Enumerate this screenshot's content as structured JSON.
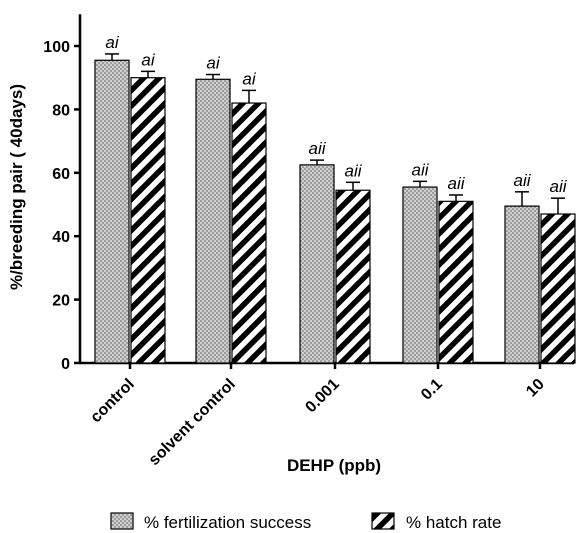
{
  "chart_data": {
    "type": "bar",
    "title": "",
    "xlabel": "DEHP (ppb)",
    "ylabel": "%/breeding pair ( 40days)",
    "ylim": [
      0,
      110
    ],
    "yticks": [
      0,
      20,
      40,
      60,
      80,
      100
    ],
    "categories": [
      "control",
      "solvent control",
      "0.001",
      "0.1",
      "10"
    ],
    "series": [
      {
        "name": "% fertilization success",
        "values": [
          95.5,
          89.5,
          62.5,
          55.5,
          49.5
        ],
        "errors": [
          2.0,
          1.5,
          1.5,
          1.8,
          4.5
        ],
        "labels": [
          "ai",
          "ai",
          "aii",
          "aii",
          "aii"
        ],
        "pattern": "dots",
        "fill": "#c8c8c8"
      },
      {
        "name": "% hatch rate",
        "values": [
          90.0,
          82.0,
          54.5,
          51.0,
          47.0
        ],
        "errors": [
          2.0,
          4.0,
          2.5,
          2.0,
          5.0
        ],
        "labels": [
          "ai",
          "ai",
          "aii",
          "aii",
          "aii"
        ],
        "pattern": "diagonal-stripes",
        "fill": "#ffffff"
      }
    ],
    "legend": {
      "position": "bottom",
      "items": [
        "% fertilization success",
        "% hatch rate"
      ]
    },
    "grid": false
  }
}
